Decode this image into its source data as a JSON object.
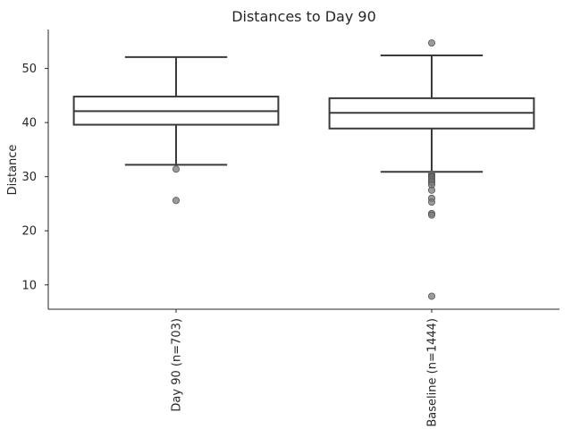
{
  "chart_data": {
    "type": "box",
    "title": "Distances to Day 90",
    "xlabel": "",
    "ylabel": "Distance",
    "ylim": [
      5.5,
      57.2
    ],
    "yticks": [
      10,
      20,
      30,
      40,
      50
    ],
    "grid": false,
    "categories": [
      "Day 90 (n=703)",
      "Baseline (n=1444)"
    ],
    "boxes": [
      {
        "category": "Day 90 (n=703)",
        "whisker_low": 32.2,
        "q1": 39.6,
        "median": 42.1,
        "q3": 44.8,
        "whisker_high": 52.1,
        "fliers": [
          31.4,
          25.6
        ]
      },
      {
        "category": "Baseline (n=1444)",
        "whisker_low": 30.9,
        "q1": 38.9,
        "median": 41.8,
        "q3": 44.5,
        "whisker_high": 52.4,
        "fliers": [
          54.7,
          30.5,
          30.2,
          30.0,
          29.8,
          29.5,
          29.2,
          28.9,
          28.5,
          27.5,
          26.0,
          25.3,
          23.2,
          22.9,
          7.9
        ]
      }
    ]
  }
}
